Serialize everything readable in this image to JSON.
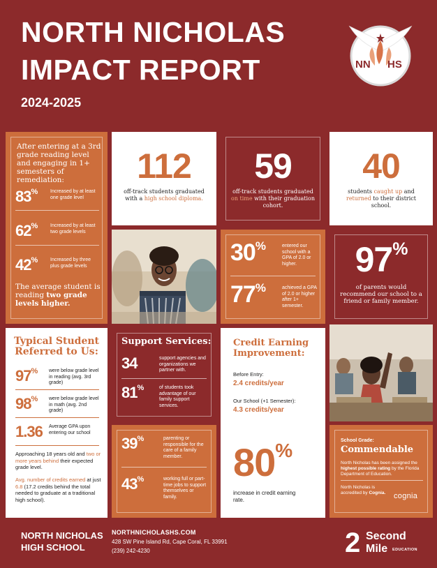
{
  "header": {
    "title_line1": "NORTH NICHOLAS",
    "title_line2": "IMPACT REPORT",
    "year": "2024-2025",
    "logo_text_left": "NN",
    "logo_text_right": "HS"
  },
  "reading_card": {
    "intro": "After entering at a 3rd grade reading level and engaging in 1+ semesters of remediation:",
    "stats": [
      {
        "value": "83",
        "unit": "%",
        "text": "Increased by at least one grade level"
      },
      {
        "value": "62",
        "unit": "%",
        "text": "Increased by at least two grade levels"
      },
      {
        "value": "42",
        "unit": "%",
        "text": "Increased by three plus grade levels"
      }
    ],
    "footer_pre": "The average student is reading ",
    "footer_bold": "two grade levels higher."
  },
  "card_112": {
    "number": "112",
    "text_pre": "off-track students graduated with a ",
    "text_hl": "high school diploma."
  },
  "card_59": {
    "number": "59",
    "text_pre": "off-track students graduated ",
    "text_hl": "on time",
    "text_post": " with their graduation cohort."
  },
  "card_40": {
    "number": "40",
    "text_pre": "students ",
    "text_hl1": "caught up",
    "text_mid": " and ",
    "text_hl2": "returned",
    "text_post": " to their district school."
  },
  "gpa_card": {
    "stat1_value": "30",
    "stat1_unit": "%",
    "stat1_text": "entered our school with a GPA of 2.0 or higher.",
    "stat2_value": "77",
    "stat2_unit": "%",
    "stat2_text": "achieved a GPA of 2.0 or higher after 1+ semester."
  },
  "parents_card": {
    "value": "97",
    "unit": "%",
    "text": "of parents would recommend our school to a friend or family member."
  },
  "typical_card": {
    "title": "Typical Student Referred to Us:",
    "stats": [
      {
        "value": "97",
        "unit": "%",
        "text": "were below grade level in reading (avg. 3rd grade)"
      },
      {
        "value": "98",
        "unit": "%",
        "text": "were below grade level in math (avg. 2nd grade)"
      },
      {
        "value": "1.36",
        "unit": "",
        "text": "Average GPA upon entering our school"
      }
    ],
    "para1_pre": "Approaching 18 years old and ",
    "para1_hl": "two or more years behind",
    "para1_post": " their expected grade level.",
    "para2_hl": "Avg. number of credits earned",
    "para2_mid": " at just ",
    "para2_num": "6.8",
    "para2_post": " (17.2 credits behind the total needed to graduate at a traditional high school)."
  },
  "support_card": {
    "title": "Support Services:",
    "stats": [
      {
        "value": "34",
        "unit": "",
        "text": "support agencies and organizations we partner with."
      },
      {
        "value": "81",
        "unit": "%",
        "text": "of students took advantage of our family support services."
      }
    ]
  },
  "support2_card": {
    "stats": [
      {
        "value": "39",
        "unit": "%",
        "text": "parenting or responsible for the care of a family member."
      },
      {
        "value": "43",
        "unit": "%",
        "text": "working full or part-time jobs to support themselves or family."
      }
    ]
  },
  "credit_card": {
    "title": "Credit Earning Improvement:",
    "before_label": "Before Entry:",
    "before_value": "2.4 credits/year",
    "after_label": "Our School (+1 Semester):",
    "after_value": "4.3 credits/year",
    "big_value": "80",
    "big_unit": "%",
    "big_text": "increase in credit earning rate."
  },
  "grade_card": {
    "label": "School Grade:",
    "grade": "Commendable",
    "text1_pre": "North Nicholas has been assigned the ",
    "text1_hl": "highest possible rating",
    "text1_post": " by the Florida Department of Education.",
    "text2_pre": "North Nicholas is accredited by ",
    "text2_hl": "Cognia.",
    "cognia_logo": "cognia"
  },
  "footer": {
    "school_line1": "NORTH NICHOLAS",
    "school_line2": "HIGH SCHOOL",
    "website": "NORTHNICHOLASHS.COM",
    "address": "428 SW Pine Island Rd, Cape Coral, FL 33991",
    "phone": "(239) 242-4230",
    "partner_big1": "Second",
    "partner_big2": "Mile",
    "partner_small": "EDUCATION",
    "partner_num": "2"
  },
  "colors": {
    "crimson": "#8c2a2b",
    "orange": "#cd6e3c",
    "white": "#ffffff"
  }
}
